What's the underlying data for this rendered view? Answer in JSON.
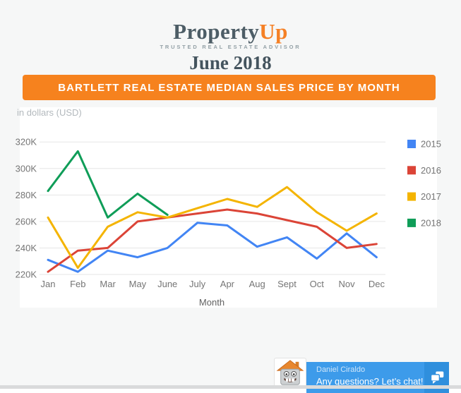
{
  "logo": {
    "brand_property": "Property",
    "brand_up": "Up",
    "tagline": "TRUSTED REAL ESTATE ADVISOR",
    "issue_date": "June 2018",
    "brand_color": "#4d5d66",
    "accent_color": "#f58025"
  },
  "banner": {
    "label": "BARTLETT REAL ESTATE MEDIAN SALES PRICE BY MONTH",
    "background": "#f6821e",
    "text_color": "#ffffff"
  },
  "chart_data": {
    "type": "line",
    "unit_label": "in dollars (USD)",
    "xlabel": "Month",
    "categories": [
      "Jan",
      "Feb",
      "Mar",
      "May",
      "June",
      "July",
      "Apr",
      "Aug",
      "Sept",
      "Oct",
      "Nov",
      "Dec"
    ],
    "y_ticks": [
      "320K",
      "300K",
      "280K",
      "260K",
      "240K",
      "220K"
    ],
    "ylim_thousands": [
      220,
      320
    ],
    "grid": true,
    "legend_position": "right",
    "series": [
      {
        "name": "2015",
        "color": "#4285F4",
        "values_k": [
          231,
          222,
          238,
          233,
          240,
          259,
          257,
          241,
          248,
          232,
          251,
          233
        ]
      },
      {
        "name": "2016",
        "color": "#DB4437",
        "values_k": [
          222,
          238,
          240,
          260,
          263,
          266,
          269,
          266,
          261,
          256,
          240,
          243
        ]
      },
      {
        "name": "2017",
        "color": "#F4B400",
        "values_k": [
          263,
          225,
          256,
          267,
          263,
          270,
          277,
          271,
          286,
          267,
          253,
          266
        ]
      },
      {
        "name": "2018",
        "color": "#0F9D58",
        "values_k": [
          283,
          313,
          263,
          281,
          265
        ]
      }
    ]
  },
  "chat": {
    "agent_name": "Daniel Ciraldo",
    "message": "Any questions? Let’s chat!",
    "panel_color": "#3d9bea",
    "button_color": "#2f8fdd"
  }
}
